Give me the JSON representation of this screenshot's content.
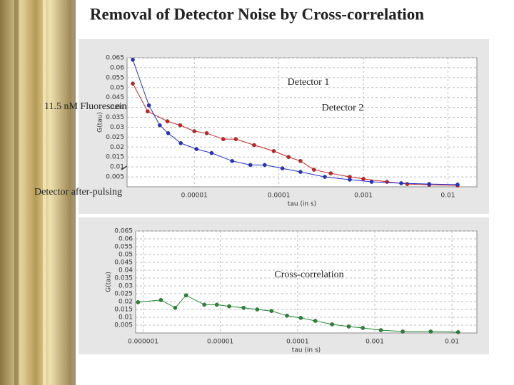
{
  "title": "Removal of Detector Noise by Cross-correlation",
  "chart_data": [
    {
      "type": "scatter",
      "xlabel": "tau (in s)",
      "ylabel": "G(tau)",
      "xscale": "log",
      "grid": true,
      "xlim": [
        1.6e-06,
        0.022
      ],
      "ylim": [
        0,
        0.065
      ],
      "xticks": [
        {
          "value": 1e-05,
          "label": "0.00001"
        },
        0.0001,
        0.001,
        0.01
      ],
      "yticks": [
        0.005,
        0.01,
        0.015,
        0.02,
        0.025,
        0.03,
        0.035,
        0.04,
        0.045,
        0.05,
        0.055,
        0.06,
        0.065
      ],
      "annotations": [
        "Detector 1",
        "Detector 2",
        "11.5 nM Fluorescein",
        "Detector after-pulsing"
      ],
      "series": [
        {
          "name": "Detector 1",
          "color": "#cc2222",
          "x": [
            1.87e-06,
            2.8e-06,
            4.8e-06,
            6.8e-06,
            1e-05,
            1.4e-05,
            2.2e-05,
            3.1e-05,
            5.1e-05,
            8.7e-05,
            0.00013,
            0.00018,
            0.00026,
            0.00041,
            0.00069,
            0.001,
            0.0019,
            0.0033,
            0.006,
            0.013
          ],
          "values": [
            0.052,
            0.038,
            0.033,
            0.031,
            0.028,
            0.027,
            0.024,
            0.024,
            0.021,
            0.018,
            0.015,
            0.013,
            0.0086,
            0.0068,
            0.005,
            0.004,
            0.0025,
            0.0014,
            0.001,
            0.0007
          ]
        },
        {
          "name": "Detector 2",
          "color": "#2233cc",
          "x": [
            1.87e-06,
            2.9e-06,
            3.9e-06,
            4.9e-06,
            6.9e-06,
            1.06e-05,
            1.6e-05,
            2.8e-05,
            4.6e-05,
            6.8e-05,
            0.00011,
            0.00018,
            0.00035,
            0.00069,
            0.00125,
            0.0028,
            0.006,
            0.013
          ],
          "values": [
            0.064,
            0.041,
            0.031,
            0.027,
            0.022,
            0.019,
            0.017,
            0.013,
            0.011,
            0.011,
            0.0093,
            0.0075,
            0.005,
            0.0036,
            0.0025,
            0.0018,
            0.0014,
            0.0011
          ]
        }
      ]
    },
    {
      "type": "scatter",
      "xlabel": "tau (in s)",
      "ylabel": "G(tau)",
      "xscale": "log",
      "grid": true,
      "xlim": [
        8e-07,
        0.021
      ],
      "ylim": [
        0,
        0.065
      ],
      "xticks": [
        {
          "value": 1e-06,
          "label": "0.000001"
        },
        {
          "value": 1e-05,
          "label": "0.00001"
        },
        0.0001,
        0.001,
        0.01
      ],
      "yticks": [
        0.005,
        0.01,
        0.015,
        0.02,
        0.025,
        0.03,
        0.035,
        0.04,
        0.045,
        0.05,
        0.055,
        0.06,
        0.065
      ],
      "annotations": [
        "Cross-correlation"
      ],
      "series": [
        {
          "name": "Cross-correlation",
          "color": "#228833",
          "x": [
            8.6e-07,
            1.7e-06,
            2.6e-06,
            3.6e-06,
            6.2e-06,
            9e-06,
            1.3e-05,
            2e-05,
            3e-05,
            4.6e-05,
            7.3e-05,
            0.00011,
            0.00017,
            0.00028,
            0.00046,
            0.0007,
            0.0012,
            0.0023,
            0.0053,
            0.012
          ],
          "values": [
            0.0196,
            0.021,
            0.016,
            0.024,
            0.018,
            0.018,
            0.017,
            0.016,
            0.015,
            0.014,
            0.011,
            0.0096,
            0.0077,
            0.0055,
            0.0041,
            0.0032,
            0.0018,
            0.0009,
            0.0009,
            0.0005
          ]
        }
      ]
    }
  ]
}
